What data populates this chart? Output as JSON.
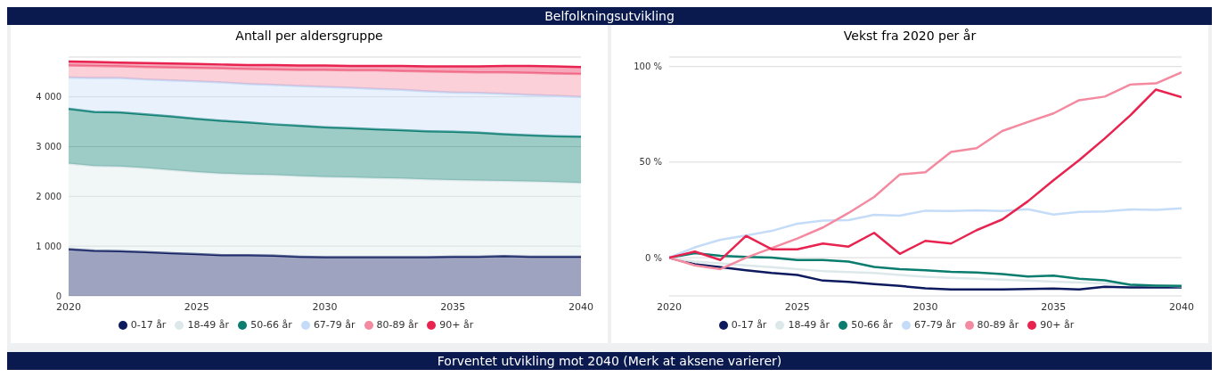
{
  "chart_data": [
    {
      "type": "area",
      "title": "Antall per aldersgruppe",
      "annotations": [
        "Belfolkningsutvikling"
      ],
      "stacked": true,
      "x": [
        2020,
        2021,
        2022,
        2023,
        2024,
        2025,
        2026,
        2027,
        2028,
        2029,
        2030,
        2031,
        2032,
        2033,
        2034,
        2035,
        2036,
        2037,
        2038,
        2039,
        2040
      ],
      "xlim": [
        2020,
        2040
      ],
      "xticks": [
        2020,
        2025,
        2030,
        2035,
        2040
      ],
      "ylim": [
        0,
        4800
      ],
      "yticks": [
        0,
        {
          "value": 1000,
          "label": "1 000"
        },
        {
          "value": 2000,
          "label": "2 000"
        },
        {
          "value": 3000,
          "label": "3 000"
        },
        {
          "value": 4000,
          "label": "4 000"
        }
      ],
      "grid": "y",
      "legend": "bottom",
      "series": [
        {
          "name": "0-17 år",
          "color": "#0d1b5e",
          "values": [
            940,
            910,
            900,
            880,
            860,
            840,
            820,
            820,
            810,
            790,
            780,
            780,
            780,
            780,
            780,
            790,
            790,
            800,
            790,
            790,
            790
          ]
        },
        {
          "name": "18-49 år",
          "color": "#dce8ea",
          "values": [
            1720,
            1700,
            1700,
            1690,
            1670,
            1650,
            1640,
            1620,
            1620,
            1620,
            1610,
            1600,
            1590,
            1580,
            1560,
            1540,
            1530,
            1510,
            1510,
            1500,
            1480
          ]
        },
        {
          "name": "50-66 år",
          "color": "#0a7d6e",
          "values": [
            1100,
            1090,
            1090,
            1080,
            1080,
            1070,
            1060,
            1050,
            1020,
            1010,
            1000,
            990,
            980,
            970,
            970,
            970,
            960,
            940,
            930,
            920,
            930
          ]
        },
        {
          "name": "67-79 år",
          "color": "#c5dcf8",
          "values": [
            630,
            680,
            690,
            700,
            720,
            750,
            770,
            770,
            790,
            800,
            810,
            810,
            810,
            810,
            800,
            790,
            800,
            810,
            810,
            810,
            800
          ]
        },
        {
          "name": "80-89 år",
          "color": "#f48aa0",
          "values": [
            240,
            240,
            230,
            250,
            260,
            270,
            280,
            300,
            310,
            320,
            340,
            350,
            370,
            380,
            400,
            410,
            410,
            430,
            440,
            450,
            460
          ]
        },
        {
          "name": "90+ år",
          "color": "#e8234f",
          "values": [
            80,
            80,
            80,
            80,
            80,
            80,
            80,
            80,
            90,
            90,
            90,
            90,
            90,
            100,
            100,
            110,
            120,
            130,
            140,
            140,
            140
          ]
        }
      ]
    },
    {
      "type": "line",
      "title": "Vekst fra 2020 per år",
      "annotations": [
        "Forventet utvikling mot 2040 (Merk at aksene varierer)"
      ],
      "x": [
        2020,
        2021,
        2022,
        2023,
        2024,
        2025,
        2026,
        2027,
        2028,
        2029,
        2030,
        2031,
        2032,
        2033,
        2034,
        2035,
        2036,
        2037,
        2038,
        2039,
        2040
      ],
      "xlim": [
        2020,
        2040
      ],
      "xticks": [
        2020,
        2025,
        2030,
        2035,
        2040
      ],
      "ylim": [
        -20,
        105
      ],
      "yticks": [
        {
          "value": 0,
          "label": "0 %"
        },
        {
          "value": 50,
          "label": "50 %"
        },
        {
          "value": 100,
          "label": "100 %"
        }
      ],
      "grid": "y",
      "legend": "bottom",
      "marker": "none",
      "series": [
        {
          "name": "0-17 år",
          "color": "#0d1b5e",
          "values": [
            0,
            -3.4,
            -5,
            -6.6,
            -8,
            -9,
            -12,
            -12.6,
            -13.8,
            -14.8,
            -16,
            -16.6,
            -16.6,
            -16.6,
            -16.4,
            -16.2,
            -16.6,
            -15.2,
            -15.6,
            -15.6,
            -15.6
          ]
        },
        {
          "name": "18-49 år",
          "color": "#dce8ea",
          "values": [
            0,
            -2,
            -3,
            -4,
            -5,
            -6,
            -7,
            -7.5,
            -8,
            -9,
            -10,
            -10.5,
            -11,
            -11.5,
            -12,
            -12.5,
            -13,
            -13.5,
            -14,
            -14.5,
            -15
          ]
        },
        {
          "name": "50-66 år",
          "color": "#0a7d6e",
          "values": [
            0,
            2.4,
            1,
            0.4,
            0,
            -1.2,
            -1.2,
            -2,
            -4.8,
            -6,
            -6.6,
            -7.4,
            -7.8,
            -8.6,
            -9.8,
            -9.4,
            -11,
            -11.8,
            -14.2,
            -14.6,
            -14.8
          ]
        },
        {
          "name": "67-79 år",
          "color": "#c5dcf8",
          "values": [
            0,
            5.4,
            9.4,
            11.6,
            14,
            17.8,
            19.4,
            19.6,
            22.4,
            22,
            24.6,
            24.4,
            24.8,
            24.4,
            25.4,
            22.6,
            24,
            24.2,
            25.2,
            25,
            25.8
          ]
        },
        {
          "name": "80-89 år",
          "color": "#f48aa0",
          "values": [
            0,
            -4,
            -6,
            0,
            5,
            10,
            15.8,
            23.4,
            31.8,
            43.5,
            44.7,
            55.3,
            57.3,
            66.3,
            71,
            75.5,
            82.4,
            84.3,
            90.6,
            91.2,
            97
          ]
        },
        {
          "name": "90+ år",
          "color": "#e8234f",
          "values": [
            0,
            3.2,
            -1.2,
            11.4,
            4.4,
            4.4,
            7.4,
            5.8,
            13,
            2,
            8.8,
            7.4,
            14.4,
            20,
            29.5,
            40.5,
            51,
            62.4,
            74.5,
            88,
            84
          ]
        }
      ]
    }
  ]
}
